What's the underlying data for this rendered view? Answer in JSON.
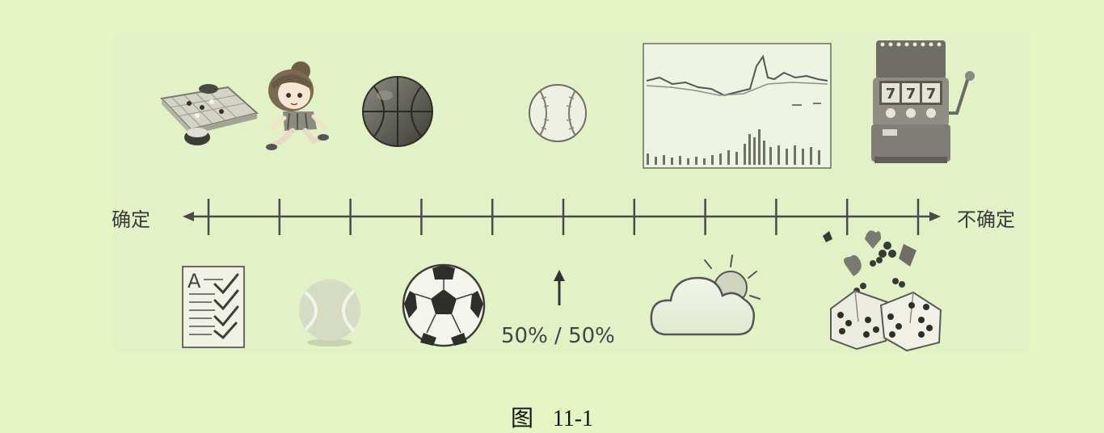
{
  "axis": {
    "left_label": "确定",
    "right_label": "不确定",
    "center_marker_label": "50% / 50%",
    "tick_count": 11
  },
  "caption": {
    "prefix": "图",
    "number": "11-1"
  },
  "icons_top": [
    "go-board-icon",
    "running-girl-icon",
    "basketball-icon",
    "baseball-icon",
    "stock-chart-icon",
    "slot-machine-icon"
  ],
  "icons_bottom": [
    "exam-checklist-icon",
    "tennis-ball-icon",
    "soccer-ball-icon",
    "up-arrow-icon",
    "cloud-sun-icon",
    "dice-cards-icon"
  ],
  "slot_machine_reels": [
    "7",
    "7",
    "7"
  ],
  "colors": {
    "background": "#e6f5c4",
    "panel": "#e3f1c6",
    "line": "#4a4a4a"
  }
}
